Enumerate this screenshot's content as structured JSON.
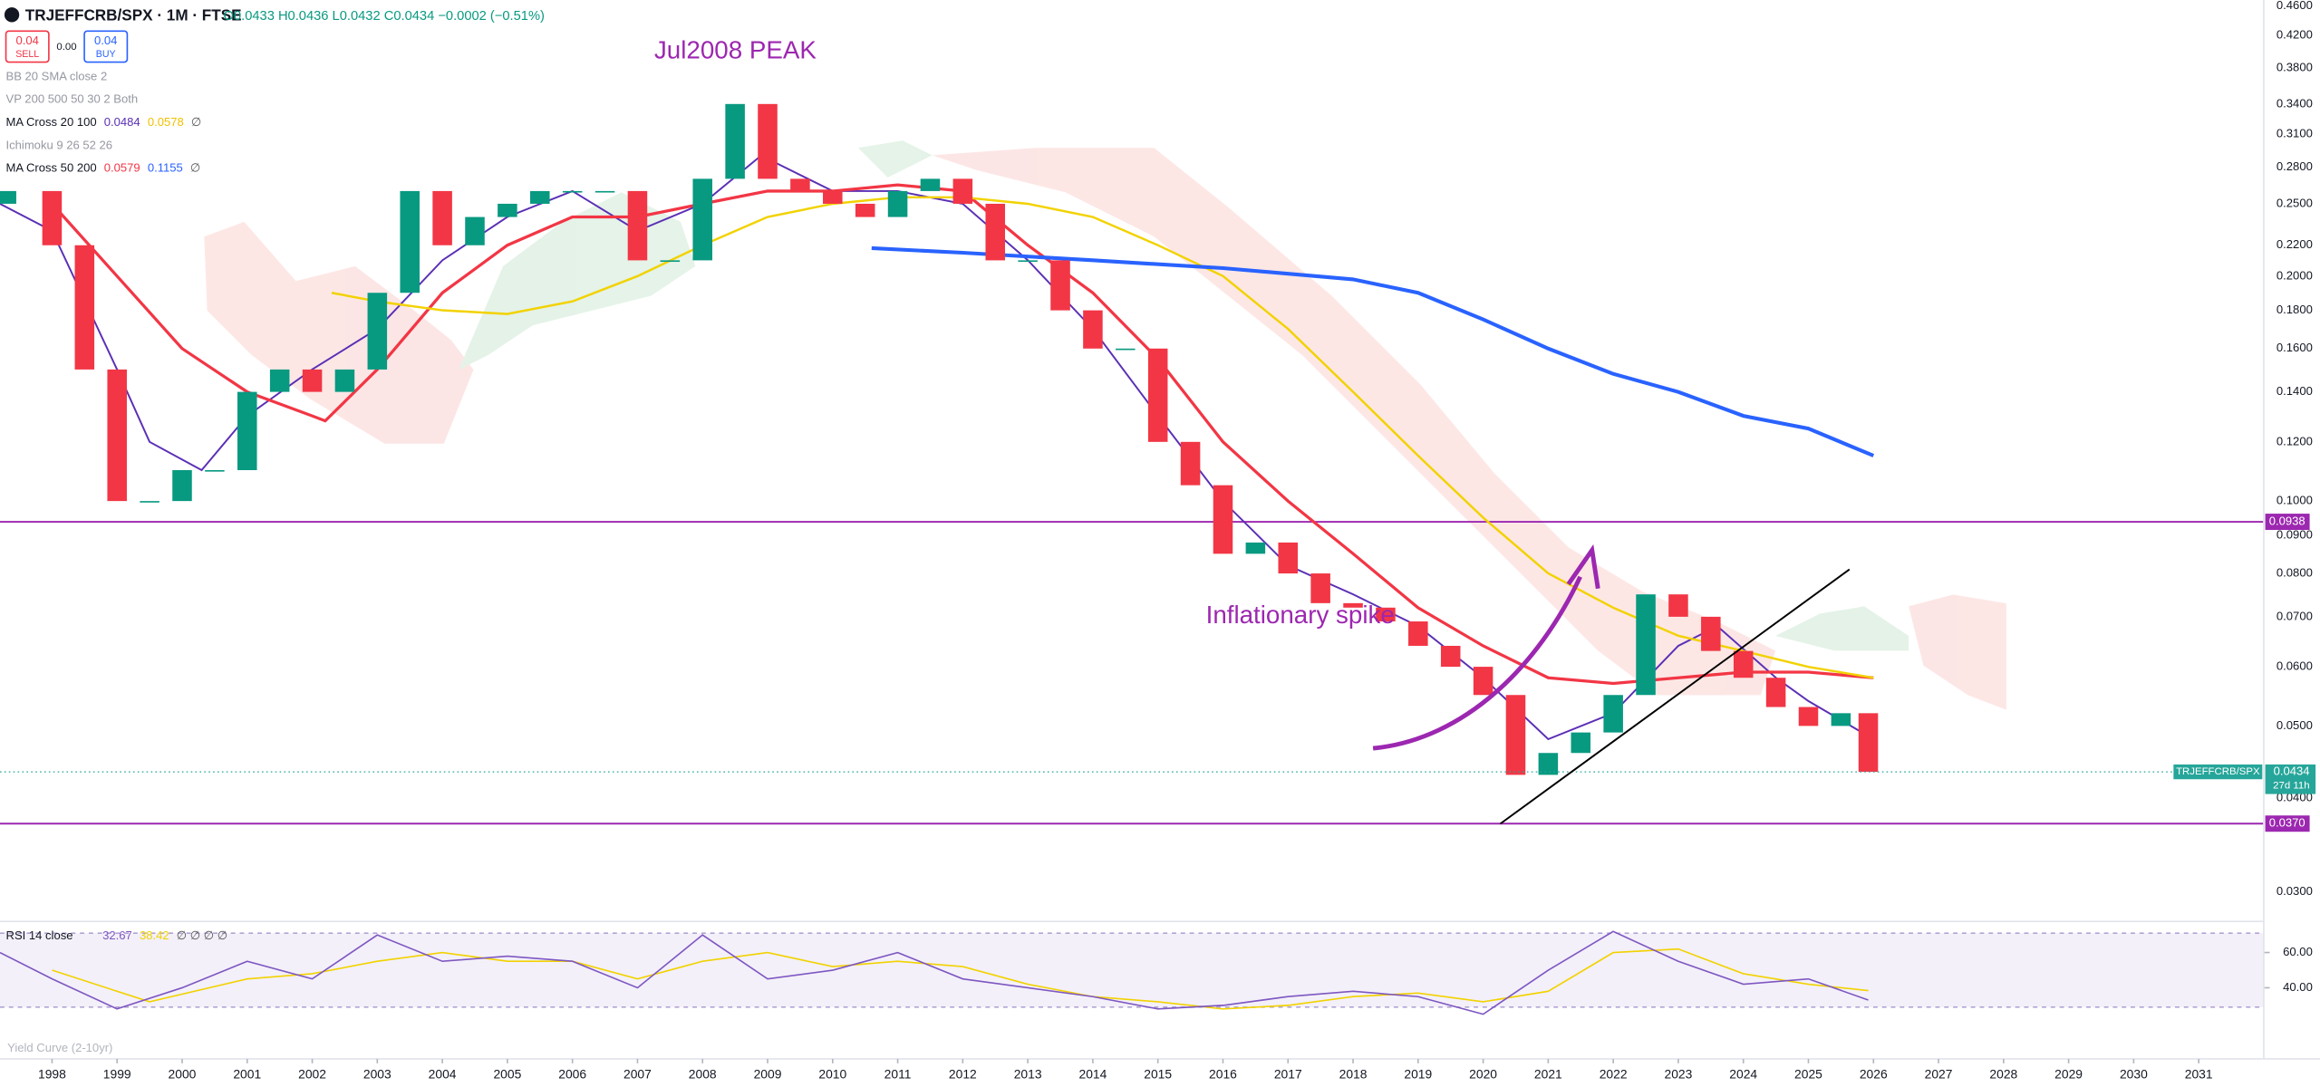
{
  "header": {
    "symbol": "TRJEFFCRB/SPX · 1M · FTSE",
    "ohlc": "O0.0433 H0.0436 L0.0432 C0.0434 −0.0002 (−0.51%)",
    "sell_price": "0.04",
    "sell": "SELL",
    "spread": "0.00",
    "buy_price": "0.04",
    "buy": "BUY"
  },
  "indicators": [
    {
      "name": "BB 20 SMA close 2"
    },
    {
      "name": "VP 200 500 50 30 2 Both"
    },
    {
      "name": "MA Cross 20 100",
      "values": [
        "0.0484",
        "0.0578"
      ],
      "colors": [
        "#5b2fb5",
        "#f2c000"
      ],
      "extra": "∅"
    },
    {
      "name": "Ichimoku 9 26 52 26"
    },
    {
      "name": "MA Cross 50 200",
      "values": [
        "0.0579",
        "0.1155"
      ],
      "colors": [
        "#f23645",
        "#2962ff"
      ],
      "extra": "∅"
    }
  ],
  "annotations": {
    "peak": "Jul2008 PEAK",
    "spike": "Inflationary spike"
  },
  "chart_data": {
    "type": "candlestick",
    "log_scale": true,
    "grid": false,
    "up_color": "#089981",
    "down_color": "#f23645",
    "x": [
      1997.3,
      1998,
      1998.5,
      1999,
      1999.5,
      2000,
      2000.5,
      2001,
      2001.5,
      2002,
      2002.5,
      2003,
      2003.5,
      2004,
      2004.5,
      2005,
      2005.5,
      2006,
      2006.5,
      2007,
      2007.5,
      2008,
      2008.5,
      2009,
      2009.5,
      2010,
      2010.5,
      2011,
      2011.5,
      2012,
      2012.5,
      2013,
      2013.5,
      2014,
      2014.5,
      2015,
      2015.5,
      2016,
      2016.5,
      2017,
      2017.5,
      2018,
      2018.5,
      2019,
      2019.5,
      2020,
      2020.5,
      2021,
      2021.5,
      2022,
      2022.5,
      2023,
      2023.5,
      2024,
      2024.5,
      2025,
      2025.5,
      2025.92
    ],
    "open": [
      0.25,
      0.26,
      0.22,
      0.15,
      0.1,
      0.1,
      0.11,
      0.11,
      0.14,
      0.15,
      0.14,
      0.15,
      0.19,
      0.26,
      0.22,
      0.24,
      0.25,
      0.26,
      0.26,
      0.26,
      0.21,
      0.21,
      0.27,
      0.34,
      0.27,
      0.26,
      0.25,
      0.24,
      0.26,
      0.27,
      0.25,
      0.21,
      0.21,
      0.18,
      0.16,
      0.16,
      0.12,
      0.105,
      0.085,
      0.088,
      0.08,
      0.073,
      0.072,
      0.069,
      0.064,
      0.06,
      0.055,
      0.043,
      0.046,
      0.049,
      0.055,
      0.075,
      0.07,
      0.063,
      0.058,
      0.053,
      0.05,
      0.052
    ],
    "close": [
      0.26,
      0.22,
      0.15,
      0.1,
      0.1,
      0.11,
      0.11,
      0.14,
      0.15,
      0.14,
      0.15,
      0.19,
      0.26,
      0.22,
      0.24,
      0.25,
      0.26,
      0.26,
      0.26,
      0.21,
      0.21,
      0.27,
      0.34,
      0.27,
      0.26,
      0.25,
      0.24,
      0.26,
      0.27,
      0.25,
      0.21,
      0.21,
      0.18,
      0.16,
      0.16,
      0.12,
      0.105,
      0.085,
      0.088,
      0.08,
      0.073,
      0.072,
      0.069,
      0.064,
      0.06,
      0.055,
      0.043,
      0.046,
      0.049,
      0.055,
      0.075,
      0.07,
      0.063,
      0.058,
      0.053,
      0.05,
      0.052,
      0.0434
    ],
    "overlays": [
      {
        "color": "#5b2fb5",
        "width": 1.2,
        "x": [
          1997.2,
          1998,
          1999,
          1999.5,
          2000.3,
          2001,
          2002,
          2003,
          2004,
          2005,
          2006,
          2007,
          2008,
          2008.9,
          2010,
          2011,
          2012,
          2013,
          2014,
          2015,
          2016,
          2017,
          2018,
          2019,
          2020,
          2021,
          2022,
          2023,
          2023.6,
          2024.5,
          2025,
          2026
        ],
        "values": [
          0.25,
          0.23,
          0.15,
          0.12,
          0.11,
          0.13,
          0.15,
          0.17,
          0.21,
          0.24,
          0.26,
          0.23,
          0.25,
          0.29,
          0.26,
          0.26,
          0.25,
          0.21,
          0.17,
          0.13,
          0.1,
          0.082,
          0.075,
          0.068,
          0.058,
          0.048,
          0.052,
          0.064,
          0.068,
          0.058,
          0.054,
          0.048
        ]
      },
      {
        "color": "#f23645",
        "width": 2,
        "x": [
          1998,
          1999,
          2000,
          2001,
          2002,
          2002.2,
          2003,
          2004,
          2005,
          2006,
          2007,
          2008,
          2009,
          2010,
          2011,
          2012,
          2013,
          2014,
          2015,
          2016,
          2017,
          2018,
          2019,
          2020,
          2021,
          2022,
          2023,
          2024,
          2025,
          2026
        ],
        "values": [
          0.25,
          0.2,
          0.16,
          0.14,
          0.13,
          0.128,
          0.15,
          0.19,
          0.22,
          0.24,
          0.24,
          0.25,
          0.26,
          0.26,
          0.265,
          0.26,
          0.22,
          0.19,
          0.155,
          0.12,
          0.1,
          0.085,
          0.072,
          0.064,
          0.058,
          0.057,
          0.058,
          0.059,
          0.059,
          0.058
        ]
      },
      {
        "color": "#f2d200",
        "width": 1.5,
        "x": [
          2002.3,
          2003,
          2004,
          2005,
          2006,
          2007,
          2008,
          2009,
          2010,
          2011,
          2012,
          2013,
          2014,
          2015,
          2016,
          2017,
          2018,
          2019,
          2020,
          2021,
          2022,
          2023,
          2024,
          2025,
          2026
        ],
        "values": [
          0.19,
          0.185,
          0.18,
          0.178,
          0.185,
          0.2,
          0.22,
          0.24,
          0.25,
          0.255,
          0.255,
          0.25,
          0.24,
          0.22,
          0.2,
          0.17,
          0.14,
          0.115,
          0.095,
          0.08,
          0.072,
          0.066,
          0.063,
          0.06,
          0.058
        ]
      },
      {
        "color": "#2962ff",
        "width": 2.5,
        "x": [
          2010.6,
          2012,
          2014,
          2016,
          2018,
          2019,
          2020,
          2021,
          2022,
          2023,
          2024,
          2025,
          2026
        ],
        "values": [
          0.218,
          0.215,
          0.21,
          0.205,
          0.198,
          0.19,
          0.175,
          0.16,
          0.148,
          0.14,
          0.13,
          0.125,
          0.115
        ]
      }
    ],
    "hlines": [
      {
        "value": 0.0938,
        "color": "#9c27b0"
      },
      {
        "value": 0.037,
        "label": "0.0370",
        "color": "#9c27b0"
      }
    ],
    "last_price": {
      "value": 0.0434,
      "symbol": "TRJEFFCRB/SPX",
      "countdown": "27d 11h",
      "color": "#26a69a"
    },
    "xlim": [
      1997.2,
      2032
    ],
    "xticks": [
      1998,
      1999,
      2000,
      2001,
      2002,
      2003,
      2004,
      2005,
      2006,
      2007,
      2008,
      2009,
      2010,
      2011,
      2012,
      2013,
      2014,
      2015,
      2016,
      2017,
      2018,
      2019,
      2020,
      2021,
      2022,
      2023,
      2024,
      2025,
      2026,
      2027,
      2028,
      2029,
      2030,
      2031
    ],
    "ylim": [
      0.0275,
      0.4685
    ],
    "yticks": [
      {
        "value": 0.46,
        "label": "0.4600"
      },
      {
        "value": 0.42,
        "label": "0.4200"
      },
      {
        "value": 0.38,
        "label": "0.3800"
      },
      {
        "value": 0.34,
        "label": "0.3400"
      },
      {
        "value": 0.31,
        "label": "0.3100"
      },
      {
        "value": 0.28,
        "label": "0.2800"
      },
      {
        "value": 0.25,
        "label": "0.2500"
      },
      {
        "value": 0.22,
        "label": "0.2200"
      },
      {
        "value": 0.2,
        "label": "0.2000"
      },
      {
        "value": 0.18,
        "label": "0.1800"
      },
      {
        "value": 0.16,
        "label": "0.1600"
      },
      {
        "value": 0.14,
        "label": "0.1400"
      },
      {
        "value": 0.12,
        "label": "0.1200"
      },
      {
        "value": 0.1,
        "label": "0.1000"
      },
      {
        "value": 0.09,
        "label": "0.0900"
      },
      {
        "value": 0.08,
        "label": "0.0800"
      },
      {
        "value": 0.07,
        "label": "0.0700"
      },
      {
        "value": 0.06,
        "label": "0.0600"
      },
      {
        "value": 0.05,
        "label": "0.0500"
      },
      {
        "value": 0.04,
        "label": "0.0400"
      },
      {
        "value": 0.03,
        "label": "0.0300"
      }
    ]
  },
  "rsi": {
    "legend": "RSI 14 close",
    "legend_values": [
      "32.67",
      "38.42"
    ],
    "legend_extra": "∅ ∅ ∅ ∅",
    "color": "#7e57c2",
    "ma_color": "#f2d200",
    "x": [
      1997.2,
      1998,
      1999,
      2000,
      2001,
      2002,
      2003,
      2004,
      2005,
      2006,
      2007,
      2008,
      2009,
      2010,
      2011,
      2012,
      2013,
      2014,
      2015,
      2016,
      2017,
      2018,
      2019,
      2020,
      2021,
      2022,
      2023,
      2024,
      2025,
      2025.92
    ],
    "values": [
      60,
      45,
      28,
      40,
      55,
      45,
      70,
      55,
      58,
      55,
      40,
      70,
      45,
      50,
      60,
      45,
      40,
      35,
      28,
      30,
      35,
      38,
      35,
      25,
      50,
      72,
      55,
      42,
      45,
      33
    ],
    "ma_x": [
      1998,
      1999.5,
      2001,
      2002,
      2003,
      2004,
      2005,
      2006,
      2007,
      2008,
      2009,
      2010,
      2011,
      2012,
      2013,
      2014,
      2015,
      2016,
      2017,
      2018,
      2019,
      2020,
      2021,
      2022,
      2023,
      2024,
      2025,
      2025.92
    ],
    "ma_values": [
      50,
      32,
      45,
      48,
      55,
      60,
      55,
      55,
      45,
      55,
      60,
      52,
      55,
      52,
      42,
      35,
      32,
      28,
      30,
      35,
      37,
      32,
      38,
      60,
      62,
      48,
      42,
      38.4
    ],
    "ylim": [
      3,
      76
    ],
    "yticks": [
      {
        "value": 60,
        "label": "60.00"
      },
      {
        "value": 40,
        "label": "40.00"
      }
    ]
  },
  "footer": {
    "yield_curve": "Yield Curve (2-10yr)"
  }
}
